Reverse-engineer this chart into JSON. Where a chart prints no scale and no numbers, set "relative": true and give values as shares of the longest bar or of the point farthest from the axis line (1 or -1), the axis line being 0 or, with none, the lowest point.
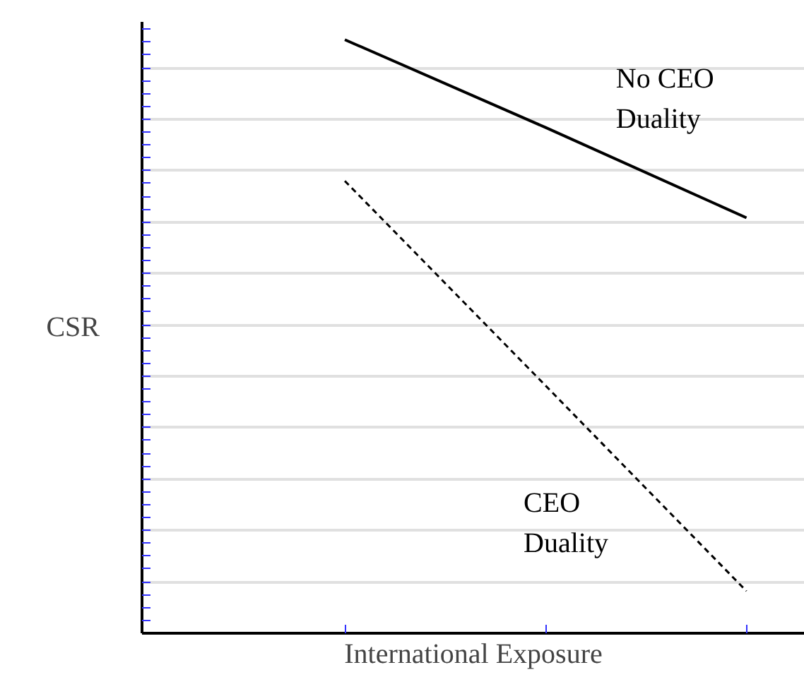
{
  "chart_data": {
    "type": "line",
    "relative": true,
    "xlabel": "International Exposure",
    "ylabel": "CSR",
    "categories": [
      null,
      null,
      null
    ],
    "grid": "y",
    "marker": "none",
    "series": [
      {
        "name": "No CEO Duality",
        "color": "#000000",
        "line_style": "solid",
        "values": [
          1,
          0.852,
          0.7
        ]
      },
      {
        "name": "CEO Duality",
        "color": "#000000",
        "line_style": "dotted",
        "values": [
          0.762,
          0.417,
          0.071
        ]
      }
    ]
  }
}
